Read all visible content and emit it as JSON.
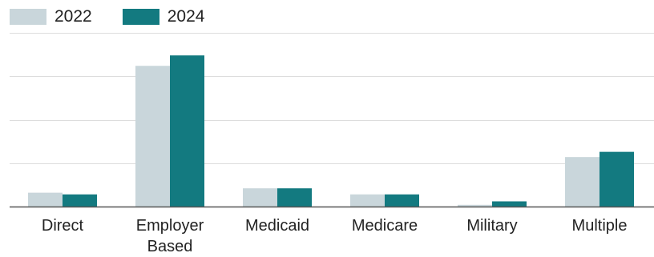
{
  "colors": {
    "series_2022": "#c9d6db",
    "series_2024": "#137a80",
    "grid": "#dddddd",
    "axis": "#555555"
  },
  "legend": {
    "items": [
      {
        "label": "2022"
      },
      {
        "label": "2024"
      }
    ]
  },
  "chart_data": {
    "type": "bar",
    "categories": [
      [
        "Direct"
      ],
      [
        "Employer",
        "Based"
      ],
      [
        "Medicaid"
      ],
      [
        "Medicare"
      ],
      [
        "Military"
      ],
      [
        "Multiple"
      ]
    ],
    "series": [
      {
        "name": "2022",
        "values": [
          8,
          81,
          10.5,
          7,
          1,
          28.5
        ]
      },
      {
        "name": "2024",
        "values": [
          7,
          87,
          10.5,
          7,
          3,
          31.5
        ]
      }
    ],
    "ylim": [
      0,
      100
    ],
    "grid": true,
    "legend_position": "top-left",
    "title": "",
    "xlabel": "",
    "ylabel": ""
  }
}
